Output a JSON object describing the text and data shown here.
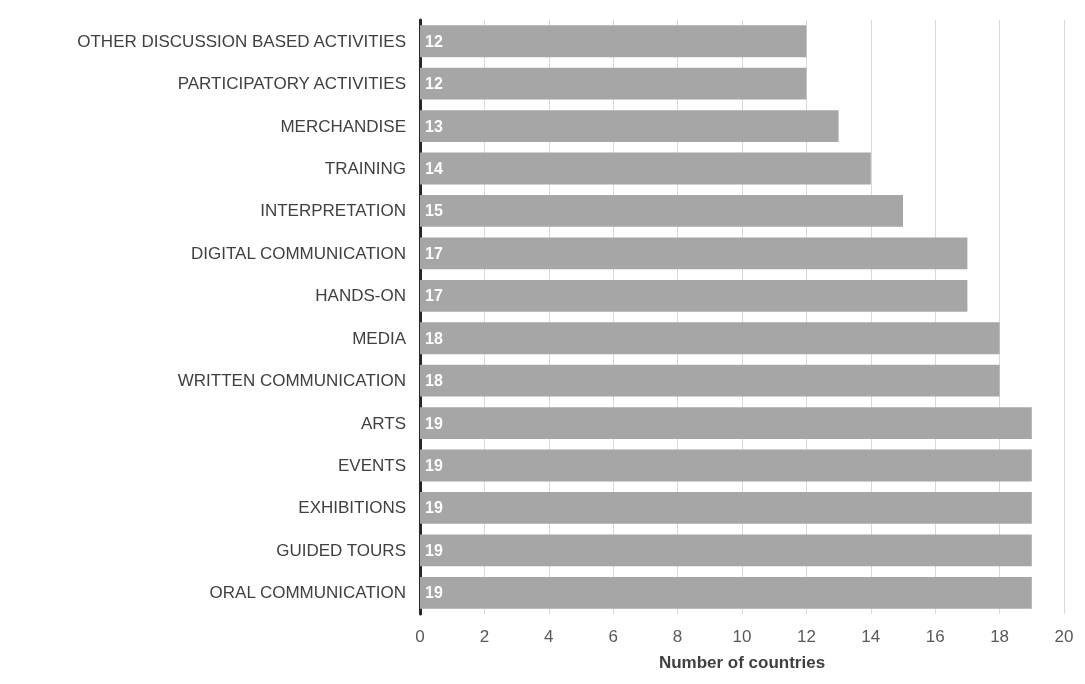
{
  "chart_data": {
    "type": "bar",
    "orientation": "horizontal",
    "xlabel": "Number of countries",
    "categories": [
      "OTHER DISCUSSION BASED ACTIVITIES",
      "PARTICIPATORY ACTIVITIES",
      "MERCHANDISE",
      "TRAINING",
      "INTERPRETATION",
      "DIGITAL COMMUNICATION",
      "HANDS-ON",
      "MEDIA",
      "WRITTEN COMMUNICATION",
      "ARTS",
      "EVENTS",
      "EXHIBITIONS",
      "GUIDED TOURS",
      "ORAL COMMUNICATION"
    ],
    "values": [
      12,
      12,
      13,
      14,
      15,
      17,
      17,
      18,
      18,
      19,
      19,
      19,
      19,
      19
    ],
    "color": "#a6a6a6",
    "xlim": [
      0,
      20
    ],
    "xticks": [
      0,
      2,
      4,
      6,
      8,
      10,
      12,
      14,
      16,
      18,
      20
    ],
    "grid": "x",
    "data_labels": true
  }
}
